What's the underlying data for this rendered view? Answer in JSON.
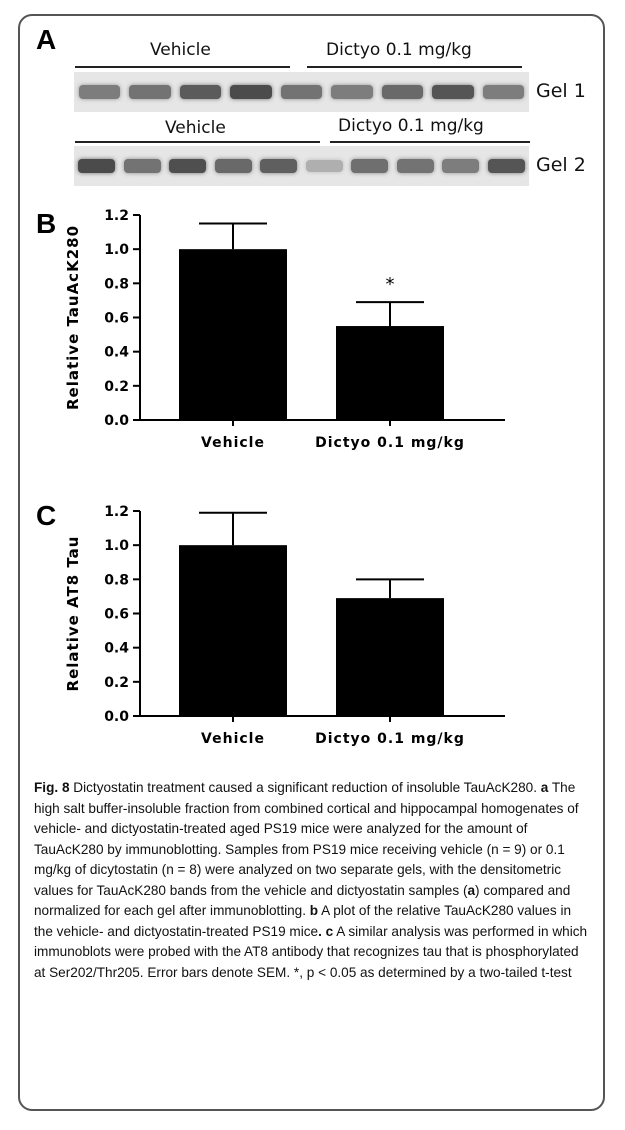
{
  "panels": {
    "a": {
      "letter": "A",
      "gel1": {
        "group_labels": [
          "Vehicle",
          "Dictyo 0.1 mg/kg"
        ],
        "label": "Gel 1",
        "band_intensity": [
          0.55,
          0.6,
          0.72,
          0.8,
          0.6,
          0.55,
          0.65,
          0.75,
          0.55
        ]
      },
      "gel2": {
        "group_labels": [
          "Vehicle",
          "Dictyo 0.1 mg/kg"
        ],
        "label": "Gel 2",
        "band_intensity": [
          0.8,
          0.6,
          0.78,
          0.65,
          0.7,
          0.3,
          0.62,
          0.6,
          0.55,
          0.75
        ]
      }
    },
    "b": {
      "letter": "B"
    },
    "c": {
      "letter": "C"
    }
  },
  "chart_data": [
    {
      "type": "bar",
      "panel": "B",
      "categories": [
        "Vehicle",
        "Dictyo 0.1 mg/kg"
      ],
      "values": [
        1.0,
        0.55
      ],
      "error_upper": [
        1.15,
        0.69
      ],
      "ylabel": "Relative TauAcK280",
      "ylim": [
        0,
        1.2
      ],
      "yticks": [
        "0.0",
        "0.2",
        "0.4",
        "0.6",
        "0.8",
        "1.0",
        "1.2"
      ],
      "annotations": [
        {
          "category": "Dictyo 0.1 mg/kg",
          "text": "*"
        }
      ]
    },
    {
      "type": "bar",
      "panel": "C",
      "categories": [
        "Vehicle",
        "Dictyo 0.1 mg/kg"
      ],
      "values": [
        1.0,
        0.69
      ],
      "error_upper": [
        1.19,
        0.8
      ],
      "ylabel": "Relative AT8 Tau",
      "ylim": [
        0,
        1.2
      ],
      "yticks": [
        "0.0",
        "0.2",
        "0.4",
        "0.6",
        "0.8",
        "1.0",
        "1.2"
      ],
      "annotations": []
    }
  ],
  "caption": {
    "fig_label": "Fig. 8",
    "title": " Dictyostatin treatment caused a significant reduction of insoluble TauAcK280. ",
    "a_label": "a",
    "a_text": " The high salt buffer-insoluble fraction from combined cortical and hippocampal homogenates of vehicle- and dictyostatin-treated aged PS19 mice were analyzed for the amount of TauAcK280 by immunoblotting. Samples from PS19 mice receiving vehicle (n = 9) or 0.1 mg/kg of dicytostatin (n = 8) were analyzed on two separate gels, with the densitometric values for TauAcK280 bands from the vehicle and dictyostatin samples (",
    "a_ref": "a",
    "a_text2": ") compared and normalized for each gel after immunoblotting. ",
    "b_label": "b",
    "b_text": " A plot of the relative TauAcK280 values in the vehicle- and dictyostatin-treated PS19 mice",
    "b_end": ".",
    "c_label": " c",
    "c_text": " A similar analysis was performed in which immunoblots were probed with the AT8 antibody that recognizes tau that is phosphorylated at Ser202/Thr205. Error bars denote SEM. *, p < 0.05 as determined by a two-tailed t-test"
  }
}
